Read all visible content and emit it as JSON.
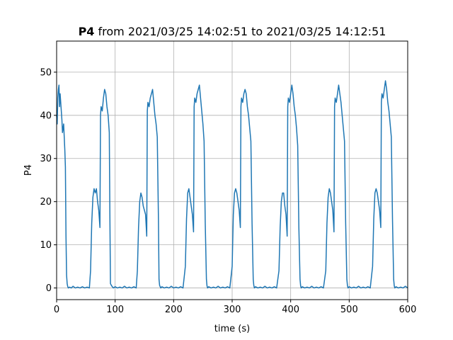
{
  "chart_data": {
    "type": "line",
    "title_bold": "P4",
    "title_rest": " from 2021/03/25 14:02:51 to 2021/03/25 14:12:51",
    "xlabel": "time (s)",
    "ylabel": "P4",
    "xlim": [
      0,
      600
    ],
    "ylim": [
      -2.7,
      57.2
    ],
    "grid": true,
    "series_color": "#1f77b4",
    "x_ticks": [
      0,
      100,
      200,
      300,
      400,
      500,
      600
    ],
    "y_ticks": [
      0,
      10,
      20,
      30,
      40,
      50
    ],
    "series": [
      {
        "x": [
          0,
          1,
          2,
          3,
          4,
          5,
          6,
          7,
          8,
          9,
          10,
          11,
          12,
          13,
          14,
          15,
          16,
          17,
          18,
          19,
          20,
          22,
          25,
          28,
          32,
          36,
          40,
          44,
          48,
          52,
          56,
          58,
          60,
          62,
          64,
          66,
          68,
          70,
          72,
          74,
          75,
          76,
          78,
          80,
          82,
          84,
          86,
          88,
          90,
          91,
          92,
          94,
          97,
          100,
          104,
          108,
          112,
          116,
          120,
          124,
          128,
          132,
          136,
          138,
          140,
          142,
          144,
          146,
          148,
          150,
          152,
          154,
          155,
          156,
          158,
          160,
          162,
          164,
          166,
          168,
          170,
          172,
          174,
          175,
          176,
          178,
          180,
          184,
          188,
          192,
          196,
          200,
          204,
          208,
          212,
          216,
          220,
          222,
          224,
          226,
          228,
          230,
          232,
          234,
          235,
          236,
          238,
          240,
          242,
          244,
          246,
          248,
          250,
          252,
          254,
          256,
          257,
          258,
          260,
          264,
          268,
          272,
          276,
          280,
          284,
          288,
          292,
          296,
          300,
          302,
          304,
          306,
          308,
          310,
          312,
          314,
          315,
          316,
          318,
          320,
          322,
          324,
          326,
          328,
          330,
          332,
          334,
          336,
          337,
          338,
          340,
          344,
          348,
          352,
          356,
          360,
          364,
          368,
          372,
          376,
          380,
          382,
          384,
          386,
          388,
          390,
          392,
          394,
          395,
          396,
          398,
          400,
          402,
          404,
          406,
          408,
          410,
          412,
          414,
          416,
          417,
          418,
          420,
          424,
          428,
          432,
          436,
          440,
          444,
          448,
          452,
          456,
          460,
          462,
          464,
          466,
          468,
          470,
          472,
          474,
          475,
          476,
          478,
          480,
          482,
          484,
          486,
          488,
          490,
          492,
          494,
          496,
          497,
          498,
          500,
          504,
          508,
          512,
          516,
          520,
          524,
          528,
          532,
          536,
          540,
          542,
          544,
          546,
          548,
          550,
          552,
          554,
          555,
          556,
          558,
          560,
          562,
          564,
          566,
          568,
          570,
          572,
          574,
          576,
          577,
          578,
          580,
          584,
          588,
          592,
          596,
          600
        ],
        "values": [
          40,
          38,
          44,
          46,
          47,
          42,
          45,
          43,
          41,
          39,
          36,
          37,
          38,
          35,
          32,
          28,
          12,
          3,
          1,
          0.3,
          0,
          0.2,
          0,
          0.4,
          0,
          0.2,
          0,
          0.3,
          0,
          0.2,
          0,
          4,
          15,
          21,
          23,
          22,
          23,
          20,
          18,
          14,
          40,
          42,
          41,
          44,
          46,
          45,
          42,
          40,
          36,
          17,
          1,
          0.5,
          0,
          0.3,
          0,
          0.2,
          0,
          0.4,
          0,
          0.2,
          0,
          0.3,
          0,
          4,
          14,
          20,
          22,
          21,
          19,
          18,
          17,
          12,
          41,
          43,
          42,
          44,
          45,
          46,
          43,
          40,
          38,
          35,
          16,
          2,
          0.6,
          0,
          0.3,
          0,
          0.2,
          0,
          0.4,
          0,
          0.2,
          0,
          0.3,
          0,
          5,
          16,
          22,
          23,
          21,
          19,
          17,
          13,
          42,
          44,
          43,
          45,
          46,
          47,
          44,
          41,
          38,
          34,
          15,
          2,
          0.5,
          0,
          0.3,
          0,
          0.2,
          0,
          0.4,
          0,
          0.2,
          0,
          0.3,
          0,
          5,
          17,
          22,
          23,
          22,
          20,
          18,
          14,
          42,
          44,
          43,
          45,
          46,
          45,
          42,
          40,
          37,
          34,
          15,
          2,
          0.6,
          0,
          0.3,
          0,
          0.2,
          0,
          0.4,
          0,
          0.2,
          0,
          0.3,
          0,
          4,
          14,
          20,
          22,
          22,
          19,
          17,
          12,
          42,
          44,
          43,
          45,
          47,
          45,
          42,
          40,
          37,
          33,
          14,
          2,
          0.5,
          0,
          0.3,
          0,
          0.2,
          0,
          0.4,
          0,
          0.2,
          0,
          0.3,
          0,
          4,
          15,
          21,
          23,
          22,
          20,
          18,
          13,
          42,
          44,
          43,
          45,
          47,
          45,
          43,
          40,
          37,
          34,
          15,
          2,
          0.6,
          0,
          0.3,
          0,
          0.2,
          0,
          0.4,
          0,
          0.2,
          0,
          0.3,
          0,
          5,
          16,
          22,
          23,
          22,
          20,
          18,
          14,
          43,
          45,
          44,
          46,
          48,
          46,
          43,
          41,
          38,
          35,
          16,
          2,
          0.5,
          0,
          0.3,
          0,
          0.2,
          0,
          0.4,
          0
        ]
      }
    ]
  }
}
